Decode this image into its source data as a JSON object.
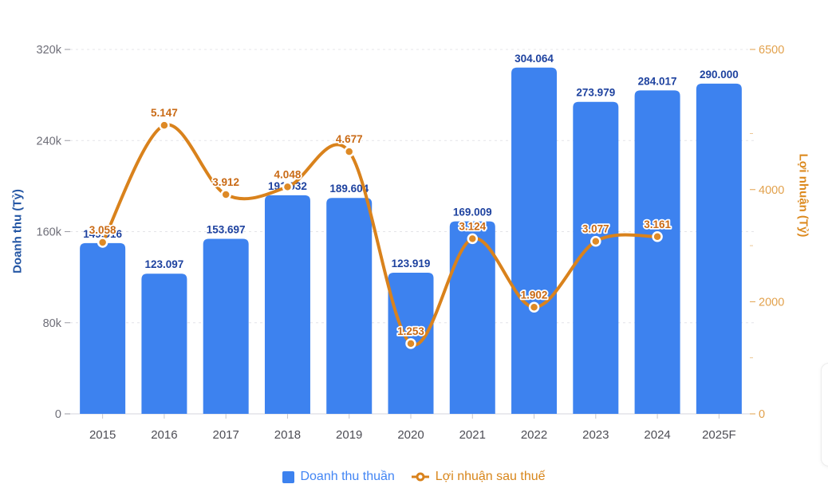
{
  "chart_data": {
    "type": "bar+line",
    "categories": [
      "2015",
      "2016",
      "2017",
      "2018",
      "2019",
      "2020",
      "2021",
      "2022",
      "2023",
      "2024",
      "2025F"
    ],
    "series": [
      {
        "name": "Doanh thu thuần",
        "type": "bar",
        "yaxis": "left",
        "values": [
          149916,
          123097,
          153697,
          191932,
          189604,
          123919,
          169009,
          304064,
          273979,
          284017,
          290000
        ],
        "value_labels": [
          "149.916",
          "123.097",
          "153.697",
          "191.932",
          "189.604",
          "123.919",
          "169.009",
          "304.064",
          "273.979",
          "284.017",
          "290.000"
        ]
      },
      {
        "name": "Lợi nhuận sau thuế",
        "type": "line",
        "yaxis": "right",
        "values": [
          3058,
          5147,
          3912,
          4048,
          4677,
          1253,
          3124,
          1902,
          3077,
          3161
        ],
        "value_labels": [
          "3.058",
          "5.147",
          "3.912",
          "4.048",
          "4.677",
          "1.253",
          "3.124",
          "1.902",
          "3.077",
          "3.161"
        ]
      }
    ],
    "left_axis": {
      "title": "Doanh thu (Tỷ)",
      "range": [
        0,
        320000
      ],
      "ticks": [
        0,
        80000,
        160000,
        240000,
        320000
      ],
      "tick_labels": [
        "0",
        "80k",
        "160k",
        "240k",
        "320k"
      ]
    },
    "right_axis": {
      "title": "Lợi nhuận (Tỷ)",
      "range": [
        0,
        6500
      ],
      "ticks": [
        0,
        2000,
        4000,
        6500
      ],
      "tick_labels": [
        "0",
        "2000",
        "4000",
        "6500"
      ],
      "minor_ticks": [
        1000,
        3000,
        5000
      ]
    },
    "grid": "horizontal dashed lines at left-axis ticks",
    "legend_position": "bottom-center",
    "value_label_format": "dot thousands separator"
  },
  "legend": {
    "items": [
      {
        "label": "Doanh thu thuần",
        "type": "bar"
      },
      {
        "label": "Lợi nhuận sau thuế",
        "type": "line"
      }
    ]
  },
  "colors": {
    "bar": "#3D82EF",
    "bar_label": "#1E429F",
    "line": "#D9821C",
    "marker_fill": "#DE8A26",
    "marker_stroke": "#FFFFFF",
    "line_label": "#C96A15",
    "left_axis_title": "#2456A4",
    "left_tick_label": "#6E6E78",
    "right_tick_label": "#E2A14C",
    "right_axis_title": "#DC8A1F",
    "x_label": "#4D4D55",
    "grid": "#E4E4E8",
    "axis_line": "#D6D6DC",
    "tick_mark": "#C6C6CC",
    "legend_revenue_text": "#4285F4",
    "legend_profit_text": "#D8861B"
  }
}
